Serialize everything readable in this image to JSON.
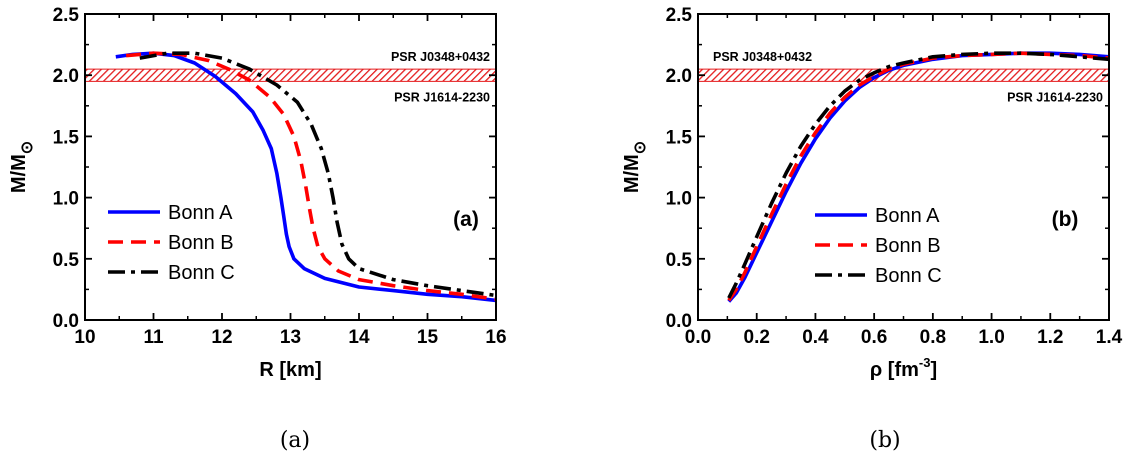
{
  "chart_data": [
    {
      "type": "line",
      "panel_label": "(a)",
      "caption": "(a)",
      "xlabel": "R [km]",
      "ylabel_main": "M/M",
      "ylabel_sub": "⊙",
      "xlim": [
        10,
        16
      ],
      "ylim": [
        0.0,
        2.5
      ],
      "xticks": [
        10,
        11,
        12,
        13,
        14,
        15,
        16
      ],
      "xtick_labels": [
        "10",
        "11",
        "12",
        "13",
        "14",
        "15",
        "16"
      ],
      "yticks": [
        0.0,
        0.5,
        1.0,
        1.5,
        2.0,
        2.5
      ],
      "ytick_labels": [
        "0.0",
        "0.5",
        "1.0",
        "1.5",
        "2.0",
        "2.5"
      ],
      "band": {
        "ymin": 1.95,
        "ymax": 2.05,
        "color": "#e41a1c",
        "labels": [
          {
            "text": "PSR J0348+0432",
            "position": "above-right"
          },
          {
            "text": "PSR J1614-2230",
            "position": "below-right"
          }
        ]
      },
      "legend_position": "center-left",
      "series": [
        {
          "name": "Bonn A",
          "color": "#0000ff",
          "style": "solid",
          "x": [
            10.45,
            10.7,
            11.0,
            11.3,
            11.6,
            11.9,
            12.2,
            12.45,
            12.6,
            12.72,
            12.8,
            12.86,
            12.9,
            12.94,
            12.98,
            13.05,
            13.2,
            13.5,
            14.0,
            14.5,
            15.0,
            15.5,
            16.0
          ],
          "y": [
            2.15,
            2.17,
            2.18,
            2.16,
            2.1,
            1.99,
            1.85,
            1.7,
            1.55,
            1.4,
            1.2,
            1.0,
            0.85,
            0.7,
            0.6,
            0.5,
            0.42,
            0.34,
            0.27,
            0.24,
            0.21,
            0.19,
            0.16
          ]
        },
        {
          "name": "Bonn B",
          "color": "#ff0000",
          "style": "dash",
          "x": [
            10.6,
            11.0,
            11.4,
            11.8,
            12.1,
            12.4,
            12.7,
            12.9,
            13.05,
            13.15,
            13.22,
            13.28,
            13.33,
            13.4,
            13.5,
            13.7,
            14.0,
            14.5,
            15.0,
            15.5,
            16.0
          ],
          "y": [
            2.16,
            2.18,
            2.17,
            2.12,
            2.05,
            1.96,
            1.82,
            1.68,
            1.5,
            1.3,
            1.1,
            0.9,
            0.75,
            0.6,
            0.5,
            0.4,
            0.33,
            0.28,
            0.24,
            0.21,
            0.17
          ]
        },
        {
          "name": "Bonn C",
          "color": "#000000",
          "style": "dashdot",
          "x": [
            10.8,
            11.2,
            11.6,
            12.0,
            12.4,
            12.8,
            13.1,
            13.3,
            13.45,
            13.55,
            13.62,
            13.68,
            13.75,
            13.85,
            14.0,
            14.5,
            15.0,
            15.5,
            16.0
          ],
          "y": [
            2.14,
            2.18,
            2.18,
            2.14,
            2.05,
            1.92,
            1.78,
            1.6,
            1.4,
            1.2,
            1.0,
            0.8,
            0.62,
            0.5,
            0.42,
            0.33,
            0.28,
            0.24,
            0.2
          ]
        }
      ]
    },
    {
      "type": "line",
      "panel_label": "(b)",
      "caption": "(b)",
      "xlabel_main": "ρ [fm",
      "xlabel_sup": "-3",
      "xlabel_end": "]",
      "ylabel_main": "M/M",
      "ylabel_sub": "⊙",
      "xlim": [
        0.0,
        1.4
      ],
      "ylim": [
        0.0,
        2.5
      ],
      "xticks": [
        0.0,
        0.2,
        0.4,
        0.6,
        0.8,
        1.0,
        1.2,
        1.4
      ],
      "xtick_labels": [
        "0.0",
        "0.2",
        "0.4",
        "0.6",
        "0.8",
        "1.0",
        "1.2",
        "1.4"
      ],
      "yticks": [
        0.0,
        0.5,
        1.0,
        1.5,
        2.0,
        2.5
      ],
      "ytick_labels": [
        "0.0",
        "0.5",
        "1.0",
        "1.5",
        "2.0",
        "2.5"
      ],
      "band": {
        "ymin": 1.95,
        "ymax": 2.05,
        "color": "#e41a1c",
        "labels": [
          {
            "text": "PSR J0348+0432",
            "position": "above-left"
          },
          {
            "text": "PSR J1614-2230",
            "position": "below-right"
          }
        ]
      },
      "legend_position": "center-right",
      "series": [
        {
          "name": "Bonn A",
          "color": "#0000ff",
          "style": "solid",
          "x": [
            0.105,
            0.13,
            0.16,
            0.2,
            0.25,
            0.3,
            0.35,
            0.4,
            0.45,
            0.5,
            0.55,
            0.6,
            0.65,
            0.7,
            0.8,
            0.9,
            1.0,
            1.1,
            1.2,
            1.3,
            1.4
          ],
          "y": [
            0.15,
            0.22,
            0.35,
            0.55,
            0.8,
            1.05,
            1.28,
            1.48,
            1.65,
            1.79,
            1.9,
            1.98,
            2.04,
            2.08,
            2.13,
            2.16,
            2.17,
            2.18,
            2.18,
            2.17,
            2.15
          ]
        },
        {
          "name": "Bonn B",
          "color": "#ff0000",
          "style": "dash",
          "x": [
            0.105,
            0.13,
            0.16,
            0.2,
            0.25,
            0.3,
            0.35,
            0.4,
            0.45,
            0.5,
            0.55,
            0.6,
            0.65,
            0.7,
            0.8,
            0.9,
            1.0,
            1.1,
            1.2,
            1.3,
            1.4
          ],
          "y": [
            0.16,
            0.25,
            0.39,
            0.6,
            0.86,
            1.11,
            1.34,
            1.53,
            1.69,
            1.82,
            1.92,
            1.99,
            2.05,
            2.09,
            2.14,
            2.16,
            2.17,
            2.18,
            2.17,
            2.16,
            2.14
          ]
        },
        {
          "name": "Bonn C",
          "color": "#000000",
          "style": "dashdot",
          "x": [
            0.105,
            0.13,
            0.16,
            0.2,
            0.25,
            0.3,
            0.35,
            0.4,
            0.45,
            0.5,
            0.55,
            0.6,
            0.65,
            0.7,
            0.8,
            0.9,
            1.0,
            1.1,
            1.2,
            1.3,
            1.4
          ],
          "y": [
            0.18,
            0.3,
            0.46,
            0.68,
            0.95,
            1.2,
            1.42,
            1.6,
            1.75,
            1.87,
            1.96,
            2.02,
            2.07,
            2.1,
            2.15,
            2.17,
            2.18,
            2.18,
            2.17,
            2.15,
            2.13
          ]
        }
      ]
    }
  ]
}
